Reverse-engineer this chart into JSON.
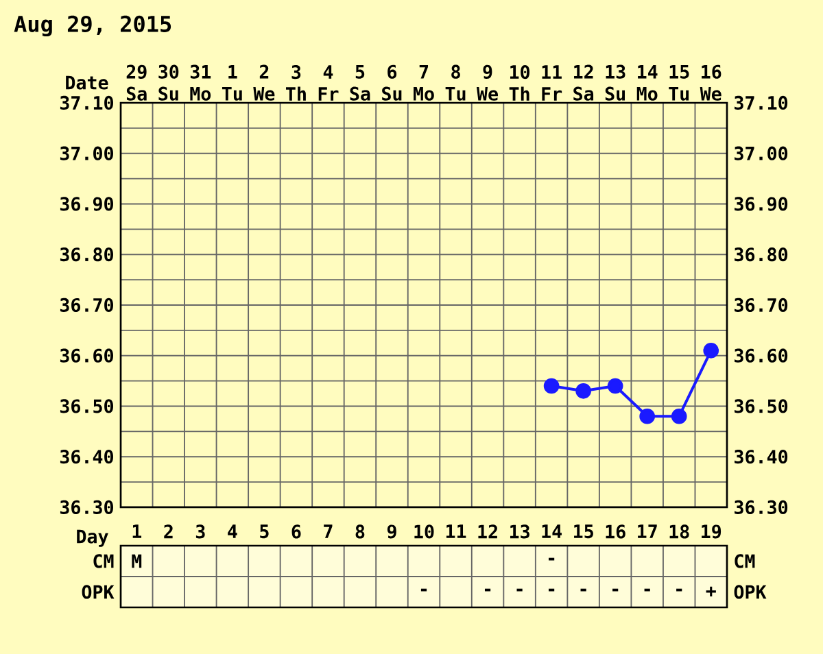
{
  "chart_data": [
    {
      "type": "line",
      "title": "Aug 29, 2015",
      "xlabel": "Day",
      "x2label": "Date",
      "categories": [
        "1",
        "2",
        "3",
        "4",
        "5",
        "6",
        "7",
        "8",
        "9",
        "10",
        "11",
        "12",
        "13",
        "14",
        "15",
        "16",
        "17",
        "18",
        "19"
      ],
      "series": [
        {
          "color": "#1a1aff",
          "values": [
            null,
            null,
            null,
            null,
            null,
            null,
            null,
            null,
            null,
            null,
            null,
            null,
            null,
            36.54,
            36.53,
            36.54,
            36.48,
            36.48,
            36.61
          ]
        }
      ],
      "x2lim": [
        "2015-08-28T12:00",
        "2015-09-16T12:00"
      ],
      "x2ticks": [
        {
          "value": "2015-08-29",
          "label": "29 Sa"
        },
        {
          "value": "2015-08-30",
          "label": "30 Su"
        },
        {
          "value": "2015-08-31",
          "label": "31 Mo"
        },
        {
          "value": "2015-09-01",
          "label": "1 Tu"
        },
        {
          "value": "2015-09-02",
          "label": "2 We"
        },
        {
          "value": "2015-09-03",
          "label": "3 Th"
        },
        {
          "value": "2015-09-04",
          "label": "4 Fr"
        },
        {
          "value": "2015-09-05",
          "label": "5 Sa"
        },
        {
          "value": "2015-09-06",
          "label": "6 Su"
        },
        {
          "value": "2015-09-07",
          "label": "7 Mo"
        },
        {
          "value": "2015-09-08",
          "label": "8 Tu"
        },
        {
          "value": "2015-09-09",
          "label": "9 We"
        },
        {
          "value": "2015-09-10",
          "label": "10 Th"
        },
        {
          "value": "2015-09-11",
          "label": "11 Fr"
        },
        {
          "value": "2015-09-12",
          "label": "12 Sa"
        },
        {
          "value": "2015-09-13",
          "label": "13 Su"
        },
        {
          "value": "2015-09-14",
          "label": "14 Mo"
        },
        {
          "value": "2015-09-15",
          "label": "15 Tu"
        },
        {
          "value": "2015-09-16",
          "label": "16 We"
        }
      ],
      "ylim": [
        36.3,
        37.1
      ],
      "yticks": [
        {
          "value": 36.3,
          "label": "36.30"
        },
        {
          "value": 36.4,
          "label": "36.40"
        },
        {
          "value": 36.5,
          "label": "36.50"
        },
        {
          "value": 36.6,
          "label": "36.60"
        },
        {
          "value": 36.7,
          "label": "36.70"
        },
        {
          "value": 36.8,
          "label": "36.80"
        },
        {
          "value": 36.9,
          "label": "36.90"
        },
        {
          "value": 37.0,
          "label": "37.00"
        },
        {
          "value": 37.1,
          "label": "37.10"
        }
      ],
      "y2lim": [
        36.3,
        37.1
      ],
      "y2ticks": [
        {
          "value": 36.3,
          "label": "36.30"
        },
        {
          "value": 36.4,
          "label": "36.40"
        },
        {
          "value": 36.5,
          "label": "36.50"
        },
        {
          "value": 36.6,
          "label": "36.60"
        },
        {
          "value": 36.7,
          "label": "36.70"
        },
        {
          "value": 36.8,
          "label": "36.80"
        },
        {
          "value": 36.9,
          "label": "36.90"
        },
        {
          "value": 37.0,
          "label": "37.00"
        },
        {
          "value": 37.1,
          "label": "37.10"
        }
      ],
      "grid": true,
      "marker": "circle",
      "line_style": "solid"
    },
    {
      "type": "heatmap",
      "categories": [
        null,
        null,
        null,
        null,
        null,
        null,
        null,
        null,
        null,
        null,
        null,
        null,
        null,
        null,
        null,
        null,
        null,
        null,
        null
      ],
      "y_categories": [
        "CM",
        "OPK"
      ],
      "y2_categories": [
        "CM",
        "OPK"
      ],
      "cells": [
        [
          null,
          null,
          null,
          null,
          null,
          null,
          null,
          null,
          null,
          null,
          null,
          null,
          null,
          null,
          null,
          null,
          null,
          null,
          null
        ],
        [
          null,
          null,
          null,
          null,
          null,
          null,
          null,
          null,
          null,
          null,
          null,
          null,
          null,
          null,
          null,
          null,
          null,
          null,
          null
        ]
      ],
      "cell_labels": [
        [
          "M",
          null,
          null,
          null,
          null,
          null,
          null,
          null,
          null,
          null,
          null,
          null,
          null,
          "-",
          null,
          null,
          null,
          null,
          null
        ],
        [
          null,
          null,
          null,
          null,
          null,
          null,
          null,
          null,
          null,
          "-",
          null,
          "-",
          "-",
          "-",
          "-",
          "-",
          "-",
          "-",
          "+"
        ]
      ]
    }
  ]
}
